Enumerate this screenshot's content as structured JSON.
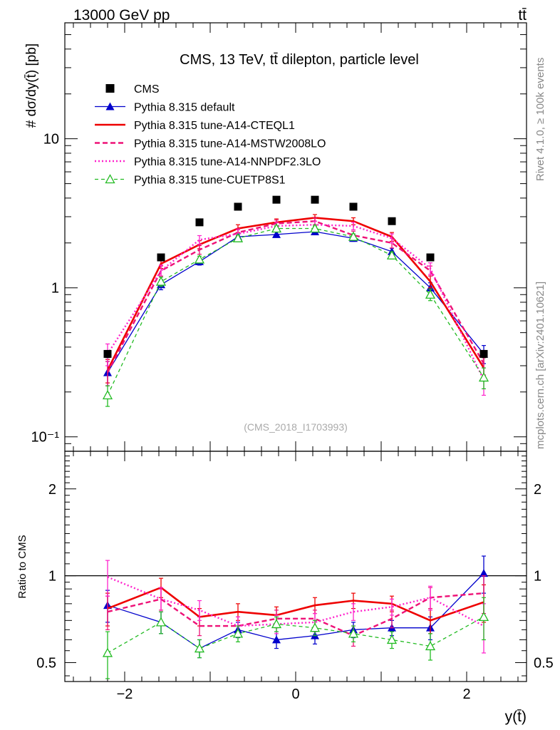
{
  "header": {
    "energy_label": "13000 GeV pp",
    "process_label": "tt̄"
  },
  "side_labels": {
    "rivet": "Rivet 4.1.0, ≥ 100k events",
    "mcplots": "mcplots.cern.ch [arXiv:2401.10621]"
  },
  "chart_data": [
    {
      "type": "scatter",
      "title": "CMS, 13 TeV, tt̄ dilepton, particle level",
      "watermark": "(CMS_2018_I1703993)",
      "ylabel": "# dσ/dy(t̄) [pb]",
      "yscale": "log",
      "ylim": [
        0.08,
        60
      ],
      "xlim": [
        -2.7,
        2.7
      ],
      "ytick_labels": [
        "10⁻¹",
        "1",
        "10"
      ],
      "legend_position": "top-left",
      "x": [
        -2.2,
        -1.575,
        -1.125,
        -0.675,
        -0.225,
        0.225,
        0.675,
        1.125,
        1.575,
        2.2
      ],
      "series": [
        {
          "name": "CMS",
          "color": "#000000",
          "style": "square",
          "values": [
            0.36,
            1.6,
            2.75,
            3.5,
            3.9,
            3.9,
            3.5,
            2.8,
            1.6,
            0.36
          ],
          "errors": [
            0.02,
            0.05,
            0.06,
            0.07,
            0.07,
            0.07,
            0.07,
            0.06,
            0.05,
            0.02
          ]
        },
        {
          "name": "Pythia 8.315 default",
          "color": "#0000cc",
          "style": "solid-triangle",
          "values": [
            0.27,
            1.05,
            1.5,
            2.2,
            2.28,
            2.38,
            2.15,
            1.75,
            1.0,
            0.36
          ],
          "errors": [
            0.05,
            0.08,
            0.08,
            0.1,
            0.1,
            0.1,
            0.1,
            0.09,
            0.08,
            0.05
          ]
        },
        {
          "name": "Pythia 8.315 tune-A14-CTEQL1",
          "color": "#ee0000",
          "style": "solid-thick",
          "values": [
            0.28,
            1.45,
            1.95,
            2.5,
            2.75,
            2.95,
            2.8,
            2.2,
            1.1,
            0.29
          ],
          "errors": [
            0.05,
            0.1,
            0.12,
            0.15,
            0.15,
            0.15,
            0.15,
            0.15,
            0.1,
            0.05
          ]
        },
        {
          "name": "Pythia 8.315 tune-A14-MSTW2008LO",
          "color": "#ee1177",
          "style": "dashed",
          "values": [
            0.27,
            1.3,
            1.8,
            2.35,
            2.7,
            2.8,
            2.25,
            2.0,
            1.3,
            0.31
          ],
          "errors": [
            0.05,
            0.1,
            0.12,
            0.15,
            0.15,
            0.15,
            0.15,
            0.15,
            0.1,
            0.05
          ]
        },
        {
          "name": "Pythia 8.315 tune-A14-NNPDF2.3LO",
          "color": "#ff22cc",
          "style": "dotted",
          "values": [
            0.36,
            1.3,
            2.1,
            2.3,
            2.6,
            2.65,
            2.6,
            2.15,
            1.35,
            0.24
          ],
          "errors": [
            0.06,
            0.12,
            0.14,
            0.15,
            0.15,
            0.15,
            0.15,
            0.15,
            0.12,
            0.05
          ]
        },
        {
          "name": "Pythia 8.315 tune-CUETP8S1",
          "color": "#22bb22",
          "style": "dashed-open-triangle",
          "values": [
            0.19,
            1.1,
            1.55,
            2.15,
            2.5,
            2.5,
            2.2,
            1.65,
            0.9,
            0.25
          ],
          "errors": [
            0.03,
            0.08,
            0.08,
            0.1,
            0.1,
            0.1,
            0.1,
            0.09,
            0.08,
            0.04
          ]
        }
      ]
    },
    {
      "type": "scatter",
      "ylabel": "Ratio to CMS",
      "xlabel": "y(t̄)",
      "yscale": "log",
      "ylim": [
        0.43,
        2.7
      ],
      "xlim": [
        -2.7,
        2.7
      ],
      "x_tick_labels": [
        "−2",
        "0",
        "2"
      ],
      "y_tick_labels": [
        "0.5",
        "1",
        "2"
      ],
      "x": [
        -2.2,
        -1.575,
        -1.125,
        -0.675,
        -0.225,
        0.225,
        0.675,
        1.125,
        1.575,
        2.2
      ],
      "series": [
        {
          "name": "Pythia 8.315 default",
          "color": "#0000cc",
          "values": [
            0.79,
            0.69,
            0.56,
            0.65,
            0.6,
            0.62,
            0.65,
            0.66,
            0.66,
            1.02
          ],
          "errors": [
            0.1,
            0.06,
            0.04,
            0.04,
            0.04,
            0.04,
            0.04,
            0.04,
            0.06,
            0.15
          ]
        },
        {
          "name": "Pythia 8.315 tune-A14-CTEQL1",
          "color": "#ee0000",
          "values": [
            0.77,
            0.91,
            0.72,
            0.75,
            0.73,
            0.79,
            0.82,
            0.8,
            0.7,
            0.81
          ],
          "errors": [
            0.1,
            0.07,
            0.05,
            0.05,
            0.05,
            0.05,
            0.05,
            0.05,
            0.07,
            0.12
          ]
        },
        {
          "name": "Pythia 8.315 tune-A14-MSTW2008LO",
          "color": "#ee1177",
          "values": [
            0.75,
            0.83,
            0.67,
            0.67,
            0.71,
            0.71,
            0.62,
            0.71,
            0.84,
            0.87
          ],
          "errors": [
            0.1,
            0.07,
            0.05,
            0.05,
            0.05,
            0.05,
            0.05,
            0.05,
            0.07,
            0.13
          ]
        },
        {
          "name": "Pythia 8.315 tune-A14-NNPDF2.3LO",
          "color": "#ff22cc",
          "values": [
            0.99,
            0.83,
            0.76,
            0.67,
            0.68,
            0.69,
            0.75,
            0.78,
            0.84,
            0.67
          ],
          "errors": [
            0.14,
            0.08,
            0.06,
            0.05,
            0.05,
            0.05,
            0.05,
            0.05,
            0.08,
            0.13
          ]
        },
        {
          "name": "Pythia 8.315 tune-CUETP8S1",
          "color": "#22bb22",
          "values": [
            0.54,
            0.69,
            0.56,
            0.63,
            0.68,
            0.66,
            0.63,
            0.6,
            0.57,
            0.72
          ],
          "errors": [
            0.1,
            0.06,
            0.04,
            0.04,
            0.04,
            0.04,
            0.04,
            0.04,
            0.06,
            0.12
          ]
        }
      ]
    }
  ]
}
